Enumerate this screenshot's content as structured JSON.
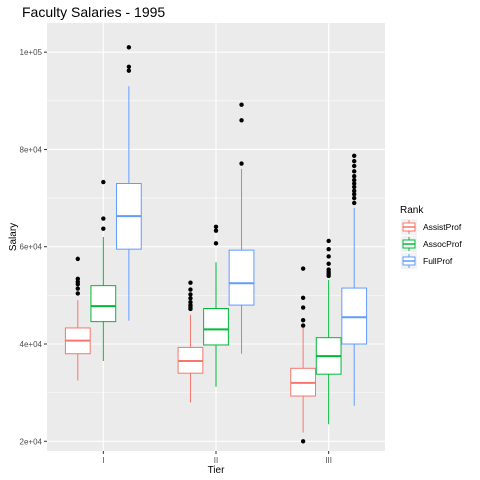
{
  "chart_data": {
    "type": "boxplot",
    "title": "Faculty Salaries - 1995",
    "xlabel": "Tier",
    "ylabel": "Salary",
    "categories": [
      "I",
      "II",
      "III"
    ],
    "y_ticks": [
      20000,
      40000,
      60000,
      80000,
      100000
    ],
    "y_tick_labels": [
      "2e+04",
      "4e+04",
      "6e+04",
      "8e+04",
      "1e+05"
    ],
    "ylim": [
      18000,
      106000
    ],
    "grid": true,
    "legend_title": "Rank",
    "legend_position": "right",
    "series": [
      {
        "name": "AssistProf",
        "color": "#F8766D",
        "boxes": [
          {
            "min": 32500,
            "q1": 38000,
            "median": 40700,
            "q3": 43300,
            "max": 49000,
            "outliers": [
              50400,
              51400,
              52300,
              52800,
              53400,
              57500
            ]
          },
          {
            "min": 28000,
            "q1": 34000,
            "median": 36500,
            "q3": 39300,
            "max": 46000,
            "outliers": [
              47200,
              47600,
              48000,
              48600,
              49400,
              50200,
              51200,
              52600
            ]
          },
          {
            "min": 21800,
            "q1": 29300,
            "median": 32000,
            "q3": 35000,
            "max": 43300,
            "outliers": [
              20000,
              43800,
              44900,
              47500,
              49500,
              55500
            ]
          }
        ]
      },
      {
        "name": "AssocProf",
        "color": "#00BA38",
        "boxes": [
          {
            "min": 36500,
            "q1": 44600,
            "median": 47800,
            "q3": 52000,
            "max": 62000,
            "outliers": [
              63700,
              65800,
              73300
            ]
          },
          {
            "min": 31200,
            "q1": 39800,
            "median": 43000,
            "q3": 47300,
            "max": 56800,
            "outliers": [
              60700,
              63300,
              64100
            ]
          },
          {
            "min": 23500,
            "q1": 33800,
            "median": 37500,
            "q3": 41300,
            "max": 53200,
            "outliers": [
              54000,
              54400,
              54800,
              55300,
              56500,
              58000,
              59500,
              61200
            ]
          }
        ]
      },
      {
        "name": "FullProf",
        "color": "#619CFF",
        "boxes": [
          {
            "min": 44800,
            "q1": 59500,
            "median": 66300,
            "q3": 73000,
            "max": 93000,
            "outliers": [
              96200,
              97000,
              101000
            ]
          },
          {
            "min": 38000,
            "q1": 48000,
            "median": 52500,
            "q3": 59300,
            "max": 76000,
            "outliers": [
              77100,
              86000,
              89200
            ]
          },
          {
            "min": 27300,
            "q1": 40000,
            "median": 45500,
            "q3": 51500,
            "max": 68000,
            "outliers": [
              69000,
              70000,
              70800,
              71500,
              72300,
              73000,
              73700,
              74500,
              75500,
              76600,
              77600,
              78700
            ]
          }
        ]
      }
    ]
  }
}
